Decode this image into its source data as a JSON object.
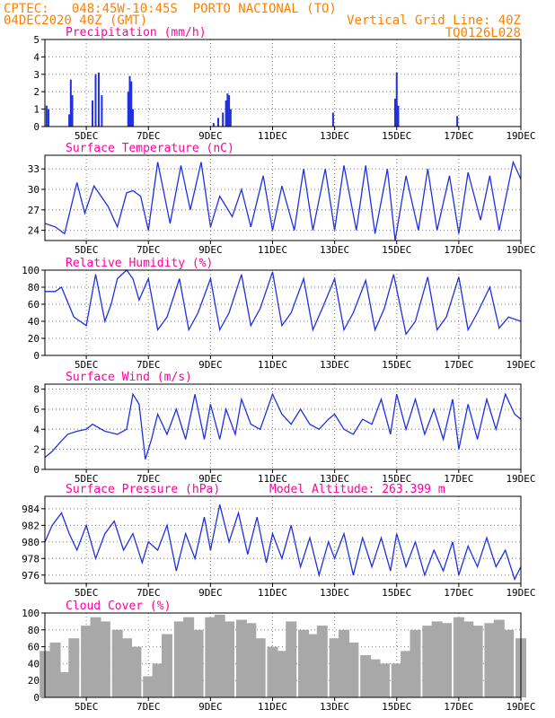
{
  "header": {
    "line1_left": "CPTEC:   048:45W-10:45S  PORTO NACIONAL (TO)",
    "line2_left": "04DEC2020 40Z (GMT)",
    "line2_right": "Vertical Grid Line: 40Z",
    "line3_right": "TQ0126L028"
  },
  "colors": {
    "header": "#ff7f00",
    "titles": "#ff00a0",
    "series": "#2030e0",
    "cloud": "#a8a8a8"
  },
  "x_axis": {
    "range": [
      3.666,
      19.0
    ],
    "tick_positions": [
      5,
      7,
      9,
      11,
      13,
      15,
      17,
      19
    ],
    "tick_labels": [
      "5DEC",
      "7DEC",
      "9DEC",
      "11DEC",
      "13DEC",
      "15DEC",
      "17DEC",
      "19DEC"
    ]
  },
  "panels": [
    {
      "id": "precip",
      "title": "Precipitation (mm/h)",
      "ylim": [
        0,
        5
      ],
      "yticks": [
        0,
        1,
        2,
        3,
        4,
        5
      ]
    },
    {
      "id": "temp",
      "title": "Surface Temperature (nC)",
      "ylim": [
        22.5,
        35
      ],
      "yticks": [
        24,
        27,
        30,
        33
      ]
    },
    {
      "id": "rh",
      "title": "Relative Humidity (%)",
      "ylim": [
        0,
        100
      ],
      "yticks": [
        0,
        20,
        40,
        60,
        80,
        100
      ]
    },
    {
      "id": "wind",
      "title": "Surface Wind (m/s)",
      "ylim": [
        0,
        8.5
      ],
      "yticks": [
        0,
        2,
        4,
        6,
        8
      ]
    },
    {
      "id": "pres",
      "title": "Surface Pressure (hPa)",
      "subtitle": "Model Altitude: 263.399 m",
      "ylim": [
        975,
        985.5
      ],
      "yticks": [
        976,
        978,
        980,
        982,
        984
      ]
    },
    {
      "id": "cloud",
      "title": "Cloud Cover (%)",
      "ylim": [
        0,
        100
      ],
      "yticks": [
        0,
        20,
        40,
        60,
        80,
        100
      ]
    }
  ],
  "chart_data": [
    {
      "type": "bar",
      "title": "Precipitation (mm/h)",
      "ylim": [
        0,
        5
      ],
      "x": [
        3.72,
        3.78,
        4.45,
        4.5,
        4.55,
        5.2,
        5.3,
        5.4,
        5.5,
        6.35,
        6.4,
        6.45,
        6.5,
        9.1,
        9.25,
        9.4,
        9.5,
        9.55,
        9.6,
        9.65,
        12.95,
        14.95,
        15.0,
        15.05,
        16.95
      ],
      "values": [
        1.2,
        1.0,
        0.7,
        2.7,
        1.8,
        1.5,
        3.0,
        3.1,
        1.8,
        2.0,
        2.9,
        2.6,
        1.0,
        0.2,
        0.5,
        0.8,
        1.5,
        1.9,
        1.8,
        1.0,
        0.8,
        1.6,
        3.1,
        1.2,
        0.6
      ]
    },
    {
      "type": "line",
      "title": "Surface Temperature (nC)",
      "ylim": [
        22.5,
        35
      ],
      "x": [
        3.67,
        4.0,
        4.3,
        4.7,
        4.95,
        5.25,
        5.7,
        6.0,
        6.3,
        6.5,
        6.75,
        7.0,
        7.3,
        7.7,
        8.05,
        8.35,
        8.7,
        9.0,
        9.3,
        9.7,
        10.0,
        10.3,
        10.7,
        11.0,
        11.3,
        11.7,
        12.0,
        12.3,
        12.7,
        13.0,
        13.3,
        13.7,
        14.0,
        14.3,
        14.7,
        14.95,
        15.3,
        15.7,
        16.0,
        16.3,
        16.7,
        17.0,
        17.3,
        17.7,
        18.0,
        18.3,
        18.75,
        19.0
      ],
      "values": [
        25,
        24.5,
        23.5,
        31,
        26.5,
        30.5,
        27.5,
        24.5,
        29.5,
        29.8,
        29,
        24,
        34,
        25,
        33.5,
        27,
        34,
        24.5,
        29,
        26,
        30,
        24.5,
        32,
        24,
        30.5,
        24,
        33,
        24,
        33,
        24,
        33.5,
        24,
        33.5,
        23.5,
        33,
        22.5,
        32,
        24,
        33,
        24,
        32,
        23.5,
        32.5,
        25.5,
        32,
        24,
        34,
        31.5
      ]
    },
    {
      "type": "line",
      "title": "Relative Humidity (%)",
      "ylim": [
        0,
        100
      ],
      "x": [
        3.67,
        4.0,
        4.2,
        4.6,
        5.0,
        5.3,
        5.6,
        5.8,
        6.0,
        6.3,
        6.5,
        6.7,
        7.0,
        7.3,
        7.6,
        8.0,
        8.3,
        8.6,
        9.0,
        9.3,
        9.6,
        10.0,
        10.3,
        10.6,
        11.0,
        11.3,
        11.6,
        12.0,
        12.3,
        12.6,
        13.0,
        13.3,
        13.6,
        14.0,
        14.3,
        14.6,
        14.9,
        15.3,
        15.6,
        16.0,
        16.3,
        16.6,
        17.0,
        17.3,
        17.6,
        18.0,
        18.3,
        18.6,
        19.0
      ],
      "values": [
        75,
        75,
        80,
        45,
        35,
        95,
        40,
        60,
        90,
        100,
        90,
        65,
        90,
        30,
        45,
        90,
        30,
        50,
        90,
        30,
        50,
        95,
        35,
        55,
        98,
        35,
        50,
        90,
        30,
        55,
        90,
        30,
        50,
        88,
        30,
        55,
        95,
        25,
        40,
        92,
        30,
        45,
        92,
        30,
        50,
        80,
        32,
        45,
        40
      ]
    },
    {
      "type": "line",
      "title": "Surface Wind (m/s)",
      "ylim": [
        0,
        8.5
      ],
      "x": [
        3.67,
        3.9,
        4.1,
        4.4,
        4.7,
        5.0,
        5.2,
        5.6,
        6.0,
        6.3,
        6.5,
        6.7,
        6.9,
        7.1,
        7.3,
        7.6,
        7.9,
        8.2,
        8.5,
        8.8,
        9.0,
        9.3,
        9.5,
        9.8,
        10.0,
        10.3,
        10.6,
        11.0,
        11.3,
        11.6,
        11.9,
        12.2,
        12.5,
        12.8,
        13.0,
        13.3,
        13.6,
        13.9,
        14.2,
        14.5,
        14.8,
        15.0,
        15.3,
        15.6,
        15.9,
        16.2,
        16.5,
        16.8,
        17.0,
        17.3,
        17.6,
        17.9,
        18.2,
        18.5,
        18.8,
        19.0
      ],
      "values": [
        1.2,
        1.8,
        2.5,
        3.5,
        3.8,
        4.0,
        4.5,
        3.8,
        3.5,
        4.0,
        7.5,
        6.5,
        1.0,
        3.0,
        5.5,
        3.5,
        6.0,
        3.0,
        7.5,
        3.0,
        6.5,
        3.0,
        6.0,
        3.5,
        7.0,
        4.5,
        4.0,
        7.5,
        5.5,
        4.5,
        6.0,
        4.5,
        4.0,
        5.0,
        5.5,
        4.0,
        3.5,
        5.0,
        4.5,
        7.0,
        3.5,
        7.5,
        4.0,
        7.0,
        3.5,
        6.0,
        3.0,
        7.0,
        2.0,
        6.5,
        3.0,
        7.0,
        4.0,
        7.5,
        5.5,
        5.0
      ]
    },
    {
      "type": "line",
      "title": "Surface Pressure (hPa)",
      "ylim": [
        975,
        985.5
      ],
      "x": [
        3.67,
        3.9,
        4.2,
        4.45,
        4.7,
        5.0,
        5.3,
        5.6,
        5.9,
        6.2,
        6.5,
        6.8,
        7.0,
        7.3,
        7.6,
        7.9,
        8.2,
        8.5,
        8.8,
        9.0,
        9.3,
        9.6,
        9.9,
        10.2,
        10.5,
        10.8,
        11.0,
        11.3,
        11.6,
        11.9,
        12.2,
        12.5,
        12.8,
        13.0,
        13.3,
        13.6,
        13.9,
        14.2,
        14.5,
        14.8,
        15.0,
        15.3,
        15.6,
        15.9,
        16.2,
        16.5,
        16.8,
        17.0,
        17.3,
        17.6,
        17.9,
        18.2,
        18.5,
        18.8,
        19.0
      ],
      "values": [
        980,
        982,
        983.5,
        981,
        979,
        982,
        978,
        981,
        982.5,
        979,
        981,
        977.5,
        980,
        979,
        982,
        976.5,
        981,
        978,
        983,
        979,
        984.5,
        980,
        983.5,
        978.5,
        983,
        977.5,
        981,
        978,
        982,
        977,
        980.5,
        976,
        980,
        978,
        981,
        976,
        980.5,
        977,
        980.5,
        976.5,
        981,
        977,
        980,
        976,
        979,
        976.5,
        980,
        976,
        979.5,
        977,
        980.5,
        977,
        979,
        975.5,
        977
      ]
    },
    {
      "type": "bar",
      "title": "Cloud Cover (%)",
      "ylim": [
        0,
        100
      ],
      "x": [
        3.67,
        4.0,
        4.3,
        4.6,
        5.0,
        5.3,
        5.6,
        6.0,
        6.3,
        6.6,
        7.0,
        7.3,
        7.6,
        8.0,
        8.3,
        8.6,
        9.0,
        9.3,
        9.6,
        10.0,
        10.3,
        10.6,
        11.0,
        11.3,
        11.6,
        12.0,
        12.3,
        12.6,
        13.0,
        13.3,
        13.6,
        14.0,
        14.3,
        14.6,
        15.0,
        15.3,
        15.6,
        16.0,
        16.3,
        16.6,
        17.0,
        17.3,
        17.6,
        18.0,
        18.3,
        18.6,
        19.0
      ],
      "values": [
        55,
        65,
        30,
        70,
        85,
        95,
        90,
        80,
        70,
        60,
        25,
        40,
        75,
        90,
        95,
        80,
        95,
        98,
        90,
        92,
        88,
        70,
        60,
        55,
        90,
        80,
        75,
        85,
        70,
        80,
        65,
        50,
        45,
        40,
        40,
        55,
        80,
        85,
        90,
        88,
        95,
        90,
        85,
        88,
        92,
        80,
        70
      ]
    }
  ]
}
